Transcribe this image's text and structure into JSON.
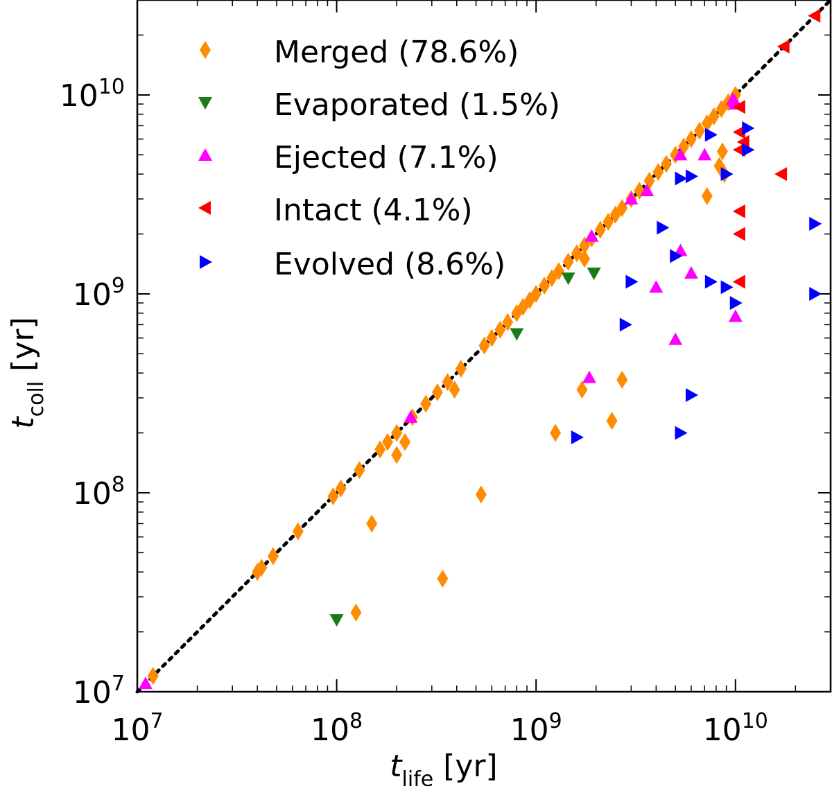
{
  "chart_data": {
    "type": "scatter",
    "title": "",
    "x_scale": "log",
    "y_scale": "log",
    "xlim": [
      10000000,
      30000000000
    ],
    "ylim": [
      10000000,
      30000000000
    ],
    "x_ticks": [
      {
        "base": "10",
        "exp": "7",
        "value": 10000000
      },
      {
        "base": "10",
        "exp": "8",
        "value": 100000000
      },
      {
        "base": "10",
        "exp": "9",
        "value": 1000000000
      },
      {
        "base": "10",
        "exp": "10",
        "value": 10000000000
      }
    ],
    "y_ticks": [
      {
        "base": "10",
        "exp": "7",
        "value": 10000000
      },
      {
        "base": "10",
        "exp": "8",
        "value": 100000000
      },
      {
        "base": "10",
        "exp": "9",
        "value": 1000000000
      },
      {
        "base": "10",
        "exp": "10",
        "value": 10000000000
      }
    ],
    "xlabel": {
      "var": "t",
      "sub": "life",
      "unit": " [yr]"
    },
    "ylabel": {
      "var": "t",
      "sub": "coll",
      "unit": " [yr]"
    },
    "legend_position": "top-left",
    "reference_line": {
      "name": "one-to-one",
      "style": "dotted",
      "color": "#000000",
      "from": [
        10000000,
        10000000
      ],
      "to": [
        30000000000,
        30000000000
      ]
    },
    "series": [
      {
        "name": "Merged (78.6%)",
        "marker": "diamond",
        "color": "#ff8c00",
        "points": [
          [
            12000000.0,
            12000000.0
          ],
          [
            40000000.0,
            40000000.0
          ],
          [
            42000000.0,
            42000000.0
          ],
          [
            48000000.0,
            48000000.0
          ],
          [
            64000000.0,
            64000000.0
          ],
          [
            96000000.0,
            96000000.0
          ],
          [
            105000000.0,
            105000000.0
          ],
          [
            130000000.0,
            130000000.0
          ],
          [
            165000000.0,
            165000000.0
          ],
          [
            180000000.0,
            180000000.0
          ],
          [
            200000000.0,
            200000000.0
          ],
          [
            240000000.0,
            240000000.0
          ],
          [
            280000000.0,
            280000000.0
          ],
          [
            320000000.0,
            320000000.0
          ],
          [
            360000000.0,
            360000000.0
          ],
          [
            420000000.0,
            420000000.0
          ],
          [
            550000000.0,
            550000000.0
          ],
          [
            600000000.0,
            600000000.0
          ],
          [
            660000000.0,
            660000000.0
          ],
          [
            720000000.0,
            720000000.0
          ],
          [
            800000000.0,
            800000000.0
          ],
          [
            860000000.0,
            860000000.0
          ],
          [
            930000000.0,
            930000000.0
          ],
          [
            1000000000.0,
            1000000000.0
          ],
          [
            1100000000.0,
            1100000000.0
          ],
          [
            1200000000.0,
            1200000000.0
          ],
          [
            1300000000.0,
            1300000000.0
          ],
          [
            1450000000.0,
            1450000000.0
          ],
          [
            1600000000.0,
            1600000000.0
          ],
          [
            1750000000.0,
            1750000000.0
          ],
          [
            1900000000.0,
            1900000000.0
          ],
          [
            2100000000.0,
            2100000000.0
          ],
          [
            2300000000.0,
            2300000000.0
          ],
          [
            2500000000.0,
            2500000000.0
          ],
          [
            2700000000.0,
            2700000000.0
          ],
          [
            3000000000.0,
            3000000000.0
          ],
          [
            3300000000.0,
            3300000000.0
          ],
          [
            3700000000.0,
            3700000000.0
          ],
          [
            4100000000.0,
            4100000000.0
          ],
          [
            4500000000.0,
            4500000000.0
          ],
          [
            5000000000.0,
            5000000000.0
          ],
          [
            5500000000.0,
            5500000000.0
          ],
          [
            6000000000.0,
            6000000000.0
          ],
          [
            6600000000.0,
            6600000000.0
          ],
          [
            7200000000.0,
            7200000000.0
          ],
          [
            7800000000.0,
            7800000000.0
          ],
          [
            8500000000.0,
            8500000000.0
          ],
          [
            9200000000.0,
            9200000000.0
          ],
          [
            10000000000.0,
            10000000000.0
          ],
          [
            150000000.0,
            70000000.0
          ],
          [
            125000000.0,
            25000000.0
          ],
          [
            340000000.0,
            37000000.0
          ],
          [
            530000000.0,
            98000000.0
          ],
          [
            200000000.0,
            155000000.0
          ],
          [
            220000000.0,
            180000000.0
          ],
          [
            390000000.0,
            330000000.0
          ],
          [
            1750000000.0,
            1500000000.0
          ],
          [
            1700000000.0,
            330000000.0
          ],
          [
            2700000000.0,
            370000000.0
          ],
          [
            2400000000.0,
            230000000.0
          ],
          [
            1250000000.0,
            200000000.0
          ],
          [
            7200000000.0,
            3100000000.0
          ],
          [
            8600000000.0,
            5200000000.0
          ],
          [
            8800000000.0,
            4000000000.0
          ],
          [
            8300000000.0,
            4400000000.0
          ]
        ]
      },
      {
        "name": "Evaporated (1.5%)",
        "marker": "triangle-down",
        "color": "#1a7a1a",
        "points": [
          [
            100000000.0,
            23000000.0
          ],
          [
            800000000.0,
            630000000.0
          ],
          [
            1950000000.0,
            1270000000.0
          ],
          [
            1450000000.0,
            1200000000.0
          ]
        ]
      },
      {
        "name": "Ejected (7.1%)",
        "marker": "triangle-up",
        "color": "#ff00ff",
        "points": [
          [
            11000000.0,
            11000000.0
          ],
          [
            235000000.0,
            240000000.0
          ],
          [
            1900000000.0,
            1950000000.0
          ],
          [
            3000000000.0,
            3000000000.0
          ],
          [
            3600000000.0,
            3300000000.0
          ],
          [
            5300000000.0,
            5000000000.0
          ],
          [
            7000000000.0,
            5000000000.0
          ],
          [
            9700000000.0,
            9500000000.0
          ],
          [
            9900000000.0,
            9300000000.0
          ],
          [
            10000000000.0,
            9000000000.0
          ],
          [
            5300000000.0,
            1650000000.0
          ],
          [
            6000000000.0,
            1270000000.0
          ],
          [
            4000000000.0,
            1080000000.0
          ],
          [
            10000000000.0,
            770000000.0
          ],
          [
            5000000000.0,
            590000000.0
          ],
          [
            1850000000.0,
            380000000.0
          ]
        ]
      },
      {
        "name": "Intact (4.1%)",
        "marker": "triangle-left",
        "color": "#ff0000",
        "points": [
          [
            25000000000.0,
            25000000000.0
          ],
          [
            17500000000.0,
            17500000000.0
          ],
          [
            10500000000.0,
            8700000000.0
          ],
          [
            10500000000.0,
            6500000000.0
          ],
          [
            11000000000.0,
            5800000000.0
          ],
          [
            10500000000.0,
            5300000000.0
          ],
          [
            17000000000.0,
            4000000000.0
          ],
          [
            10500000000.0,
            2600000000.0
          ],
          [
            10500000000.0,
            2000000000.0
          ],
          [
            10500000000.0,
            1150000000.0
          ]
        ]
      },
      {
        "name": "Evolved (8.6%)",
        "marker": "triangle-right",
        "color": "#0000ff",
        "points": [
          [
            11500000000.0,
            6800000000.0
          ],
          [
            11500000000.0,
            5300000000.0
          ],
          [
            7500000000.0,
            6300000000.0
          ],
          [
            5300000000.0,
            3800000000.0
          ],
          [
            6000000000.0,
            3900000000.0
          ],
          [
            9000000000.0,
            4000000000.0
          ],
          [
            4300000000.0,
            2150000000.0
          ],
          [
            25000000000.0,
            2250000000.0
          ],
          [
            5000000000.0,
            1550000000.0
          ],
          [
            3000000000.0,
            1150000000.0
          ],
          [
            7500000000.0,
            1150000000.0
          ],
          [
            9000000000.0,
            1080000000.0
          ],
          [
            10000000000.0,
            900000000.0
          ],
          [
            25000000000.0,
            1000000000.0
          ],
          [
            2800000000.0,
            700000000.0
          ],
          [
            6000000000.0,
            310000000.0
          ],
          [
            5300000000.0,
            200000000.0
          ],
          [
            1600000000.0,
            190000000.0
          ]
        ]
      }
    ]
  }
}
